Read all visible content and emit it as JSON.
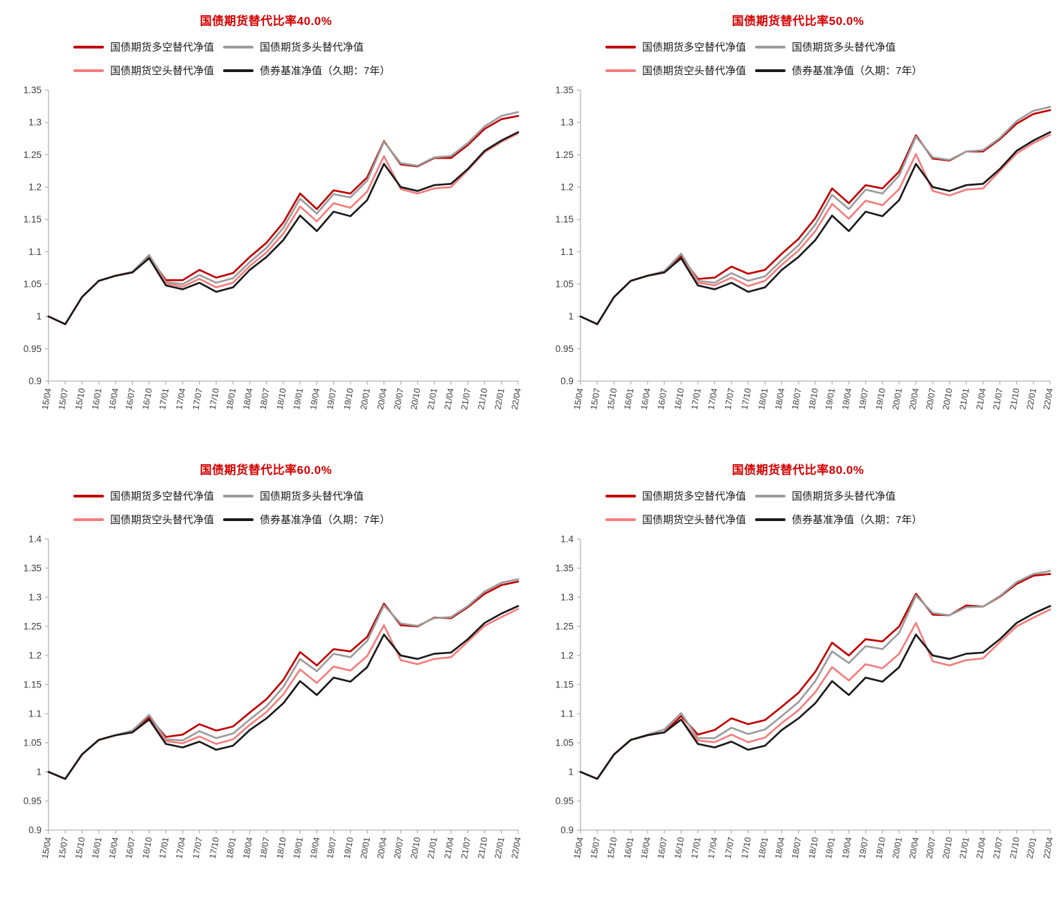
{
  "colors": {
    "title_red": "#d40000",
    "line_long_short": "#c00000",
    "line_long": "#9c9c9c",
    "line_short": "#f47d7d",
    "line_benchmark": "#1a1a1a",
    "axis": "#b3b3b3",
    "tick_label": "#3d3d3d"
  },
  "legend": {
    "items": [
      {
        "name": "long-short",
        "label": "国债期货多空替代净值",
        "color": "#c00000"
      },
      {
        "name": "long",
        "label": "国债期货多头替代净值",
        "color": "#9c9c9c"
      },
      {
        "name": "short",
        "label": "国债期货空头替代净值",
        "color": "#f47d7d"
      },
      {
        "name": "benchmark",
        "label": "债券基准净值（久期：7年）",
        "color": "#1a1a1a"
      }
    ]
  },
  "x_labels": [
    "15/04",
    "15/07",
    "15/10",
    "16/01",
    "16/04",
    "16/07",
    "16/10",
    "17/01",
    "17/04",
    "17/07",
    "17/10",
    "18/01",
    "18/04",
    "18/07",
    "18/10",
    "19/01",
    "19/04",
    "19/07",
    "19/10",
    "20/01",
    "20/04",
    "20/07",
    "20/10",
    "21/01",
    "21/04",
    "21/07",
    "21/10",
    "22/01",
    "22/04"
  ],
  "chart_data": [
    {
      "type": "line",
      "title": "国债期货替代比率40.0%",
      "ylim": [
        0.9,
        1.35
      ],
      "ytick_step": 0.05,
      "legend_position": "top",
      "grid": false,
      "series": [
        {
          "name": "国债期货多空替代净值",
          "color": "#c00000",
          "values": [
            1.0,
            0.988,
            1.03,
            1.055,
            1.063,
            1.068,
            1.092,
            1.056,
            1.056,
            1.072,
            1.06,
            1.067,
            1.092,
            1.114,
            1.145,
            1.19,
            1.166,
            1.195,
            1.19,
            1.215,
            1.271,
            1.235,
            1.232,
            1.245,
            1.245,
            1.265,
            1.29,
            1.305,
            1.31
          ]
        },
        {
          "name": "国债期货多头替代净值",
          "color": "#9c9c9c",
          "values": [
            1.0,
            0.988,
            1.03,
            1.055,
            1.063,
            1.069,
            1.095,
            1.053,
            1.05,
            1.064,
            1.052,
            1.059,
            1.084,
            1.106,
            1.137,
            1.182,
            1.159,
            1.189,
            1.184,
            1.21,
            1.27,
            1.237,
            1.233,
            1.246,
            1.248,
            1.268,
            1.294,
            1.31,
            1.316
          ]
        },
        {
          "name": "国债期货空头替代净值",
          "color": "#f47d7d",
          "values": [
            1.0,
            0.988,
            1.03,
            1.055,
            1.063,
            1.068,
            1.09,
            1.051,
            1.046,
            1.058,
            1.045,
            1.052,
            1.078,
            1.099,
            1.128,
            1.17,
            1.147,
            1.175,
            1.168,
            1.193,
            1.248,
            1.197,
            1.19,
            1.198,
            1.2,
            1.226,
            1.254,
            1.27,
            1.283
          ]
        },
        {
          "name": "债券基准净值（久期：7年）",
          "color": "#1a1a1a",
          "values": [
            1.0,
            0.988,
            1.03,
            1.055,
            1.063,
            1.068,
            1.09,
            1.048,
            1.042,
            1.052,
            1.038,
            1.045,
            1.072,
            1.092,
            1.118,
            1.156,
            1.132,
            1.162,
            1.155,
            1.18,
            1.236,
            1.2,
            1.194,
            1.203,
            1.205,
            1.228,
            1.256,
            1.272,
            1.285
          ]
        }
      ]
    },
    {
      "type": "line",
      "title": "国债期货替代比率50.0%",
      "ylim": [
        0.9,
        1.35
      ],
      "ytick_step": 0.05,
      "legend_position": "top",
      "grid": false,
      "series": [
        {
          "name": "国债期货多空替代净值",
          "color": "#c00000",
          "values": [
            1.0,
            0.988,
            1.03,
            1.055,
            1.063,
            1.068,
            1.093,
            1.058,
            1.06,
            1.077,
            1.066,
            1.072,
            1.097,
            1.12,
            1.152,
            1.198,
            1.175,
            1.203,
            1.198,
            1.224,
            1.28,
            1.244,
            1.241,
            1.255,
            1.255,
            1.274,
            1.298,
            1.313,
            1.319
          ]
        },
        {
          "name": "国债期货多头替代净值",
          "color": "#9c9c9c",
          "values": [
            1.0,
            0.988,
            1.03,
            1.055,
            1.063,
            1.07,
            1.097,
            1.055,
            1.052,
            1.067,
            1.055,
            1.062,
            1.087,
            1.11,
            1.142,
            1.188,
            1.166,
            1.196,
            1.19,
            1.218,
            1.278,
            1.246,
            1.242,
            1.255,
            1.257,
            1.276,
            1.302,
            1.318,
            1.324
          ]
        },
        {
          "name": "国债期货空头替代净值",
          "color": "#f47d7d",
          "values": [
            1.0,
            0.988,
            1.03,
            1.055,
            1.063,
            1.068,
            1.09,
            1.052,
            1.048,
            1.06,
            1.047,
            1.055,
            1.08,
            1.102,
            1.132,
            1.174,
            1.151,
            1.179,
            1.172,
            1.197,
            1.251,
            1.194,
            1.187,
            1.196,
            1.198,
            1.225,
            1.252,
            1.268,
            1.281
          ]
        },
        {
          "name": "债券基准净值（久期：7年）",
          "color": "#1a1a1a",
          "values": [
            1.0,
            0.988,
            1.03,
            1.055,
            1.063,
            1.068,
            1.09,
            1.048,
            1.042,
            1.052,
            1.038,
            1.045,
            1.072,
            1.092,
            1.118,
            1.156,
            1.132,
            1.162,
            1.155,
            1.18,
            1.236,
            1.2,
            1.194,
            1.203,
            1.205,
            1.228,
            1.256,
            1.272,
            1.285
          ]
        }
      ]
    },
    {
      "type": "line",
      "title": "国债期货替代比率60.0%",
      "ylim": [
        0.9,
        1.4
      ],
      "ytick_step": 0.05,
      "legend_position": "top",
      "grid": false,
      "series": [
        {
          "name": "国债期货多空替代净值",
          "color": "#c00000",
          "values": [
            1.0,
            0.988,
            1.03,
            1.055,
            1.063,
            1.068,
            1.094,
            1.06,
            1.064,
            1.082,
            1.071,
            1.078,
            1.102,
            1.125,
            1.158,
            1.206,
            1.183,
            1.211,
            1.207,
            1.232,
            1.289,
            1.252,
            1.25,
            1.265,
            1.264,
            1.283,
            1.306,
            1.321,
            1.327
          ]
        },
        {
          "name": "国债期货多头替代净值",
          "color": "#9c9c9c",
          "values": [
            1.0,
            0.988,
            1.03,
            1.055,
            1.063,
            1.071,
            1.098,
            1.056,
            1.054,
            1.07,
            1.058,
            1.066,
            1.09,
            1.113,
            1.146,
            1.194,
            1.173,
            1.203,
            1.197,
            1.225,
            1.286,
            1.255,
            1.251,
            1.264,
            1.266,
            1.285,
            1.31,
            1.325,
            1.331
          ]
        },
        {
          "name": "国债期货空头替代净值",
          "color": "#f47d7d",
          "values": [
            1.0,
            0.988,
            1.03,
            1.055,
            1.063,
            1.068,
            1.09,
            1.053,
            1.049,
            1.061,
            1.048,
            1.056,
            1.081,
            1.103,
            1.133,
            1.176,
            1.153,
            1.181,
            1.174,
            1.199,
            1.252,
            1.192,
            1.185,
            1.194,
            1.197,
            1.224,
            1.251,
            1.266,
            1.28
          ]
        },
        {
          "name": "债券基准净值（久期：7年）",
          "color": "#1a1a1a",
          "values": [
            1.0,
            0.988,
            1.03,
            1.055,
            1.063,
            1.068,
            1.09,
            1.048,
            1.042,
            1.052,
            1.038,
            1.045,
            1.072,
            1.092,
            1.118,
            1.156,
            1.132,
            1.162,
            1.155,
            1.18,
            1.236,
            1.2,
            1.194,
            1.203,
            1.205,
            1.228,
            1.256,
            1.272,
            1.285
          ]
        }
      ]
    },
    {
      "type": "line",
      "title": "国债期货替代比率80.0%",
      "ylim": [
        0.9,
        1.4
      ],
      "ytick_step": 0.05,
      "legend_position": "top",
      "grid": false,
      "series": [
        {
          "name": "国债期货多空替代净值",
          "color": "#c00000",
          "values": [
            1.0,
            0.988,
            1.03,
            1.055,
            1.063,
            1.068,
            1.096,
            1.064,
            1.072,
            1.092,
            1.082,
            1.089,
            1.112,
            1.136,
            1.172,
            1.222,
            1.2,
            1.228,
            1.224,
            1.25,
            1.306,
            1.27,
            1.269,
            1.286,
            1.284,
            1.301,
            1.323,
            1.337,
            1.34
          ]
        },
        {
          "name": "国债期货多头替代净值",
          "color": "#9c9c9c",
          "values": [
            1.0,
            0.988,
            1.03,
            1.055,
            1.064,
            1.073,
            1.101,
            1.058,
            1.058,
            1.076,
            1.065,
            1.073,
            1.096,
            1.12,
            1.156,
            1.207,
            1.187,
            1.216,
            1.211,
            1.239,
            1.303,
            1.273,
            1.269,
            1.283,
            1.284,
            1.302,
            1.326,
            1.34,
            1.345
          ]
        },
        {
          "name": "国债期货空头替代净值",
          "color": "#f47d7d",
          "values": [
            1.0,
            0.988,
            1.03,
            1.055,
            1.063,
            1.068,
            1.09,
            1.054,
            1.051,
            1.064,
            1.051,
            1.059,
            1.084,
            1.106,
            1.137,
            1.18,
            1.157,
            1.185,
            1.178,
            1.203,
            1.256,
            1.19,
            1.183,
            1.192,
            1.195,
            1.223,
            1.25,
            1.265,
            1.279
          ]
        },
        {
          "name": "债券基准净值（久期：7年）",
          "color": "#1a1a1a",
          "values": [
            1.0,
            0.988,
            1.03,
            1.055,
            1.063,
            1.068,
            1.09,
            1.048,
            1.042,
            1.052,
            1.038,
            1.045,
            1.072,
            1.092,
            1.118,
            1.156,
            1.132,
            1.162,
            1.155,
            1.18,
            1.236,
            1.2,
            1.194,
            1.203,
            1.205,
            1.228,
            1.256,
            1.272,
            1.285
          ]
        }
      ]
    }
  ]
}
